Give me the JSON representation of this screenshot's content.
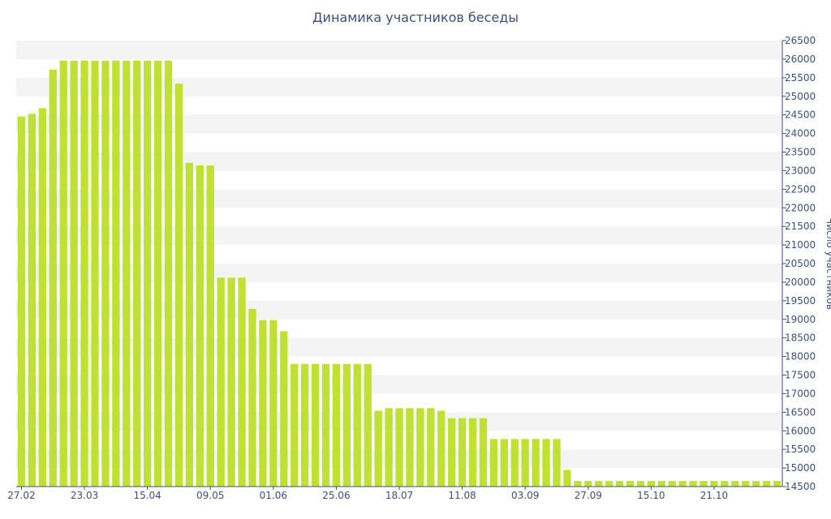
{
  "chart_data": {
    "type": "bar",
    "title": "Динамика участников беседы",
    "ylabel": "Число участников",
    "xlabel": "",
    "ylim": [
      14500,
      26500
    ],
    "y_ticks": [
      14500,
      15000,
      15500,
      16000,
      16500,
      17000,
      17500,
      18000,
      18500,
      19000,
      19500,
      20000,
      20500,
      21000,
      21500,
      22000,
      22500,
      23000,
      23500,
      24000,
      24500,
      25000,
      25500,
      26000,
      26500
    ],
    "x_tick_labels": [
      {
        "index": 0,
        "label": "27.02"
      },
      {
        "index": 6,
        "label": "23.03"
      },
      {
        "index": 12,
        "label": "15.04"
      },
      {
        "index": 18,
        "label": "09.05"
      },
      {
        "index": 24,
        "label": "01.06"
      },
      {
        "index": 30,
        "label": "25.06"
      },
      {
        "index": 36,
        "label": "18.07"
      },
      {
        "index": 42,
        "label": "11.08"
      },
      {
        "index": 48,
        "label": "03.09"
      },
      {
        "index": 54,
        "label": "27.09"
      },
      {
        "index": 60,
        "label": "15.10"
      },
      {
        "index": 66,
        "label": "21.10"
      }
    ],
    "values": [
      24450,
      24530,
      24680,
      25720,
      25960,
      25960,
      25960,
      25960,
      25960,
      25960,
      25960,
      25960,
      25960,
      25960,
      25960,
      25340,
      23210,
      23140,
      23140,
      20120,
      20120,
      20120,
      19280,
      18980,
      18980,
      18680,
      17800,
      17800,
      17800,
      17800,
      17800,
      17800,
      17800,
      17800,
      16540,
      16610,
      16610,
      16610,
      16610,
      16610,
      16540,
      16340,
      16340,
      16340,
      16340,
      15780,
      15780,
      15780,
      15780,
      15780,
      15780,
      15780,
      14950,
      14650,
      14650,
      14650,
      14650,
      14650,
      14650,
      14650,
      14650,
      14650,
      14650,
      14650,
      14650,
      14650,
      14650,
      14650,
      14650,
      14650,
      14650,
      14650,
      14650
    ],
    "grid": true,
    "legend": "none",
    "colors": {
      "bar": "#c1e034",
      "band": "#f4f4f4",
      "text": "#3e4f7e",
      "axis": "#3e4f7e"
    }
  }
}
